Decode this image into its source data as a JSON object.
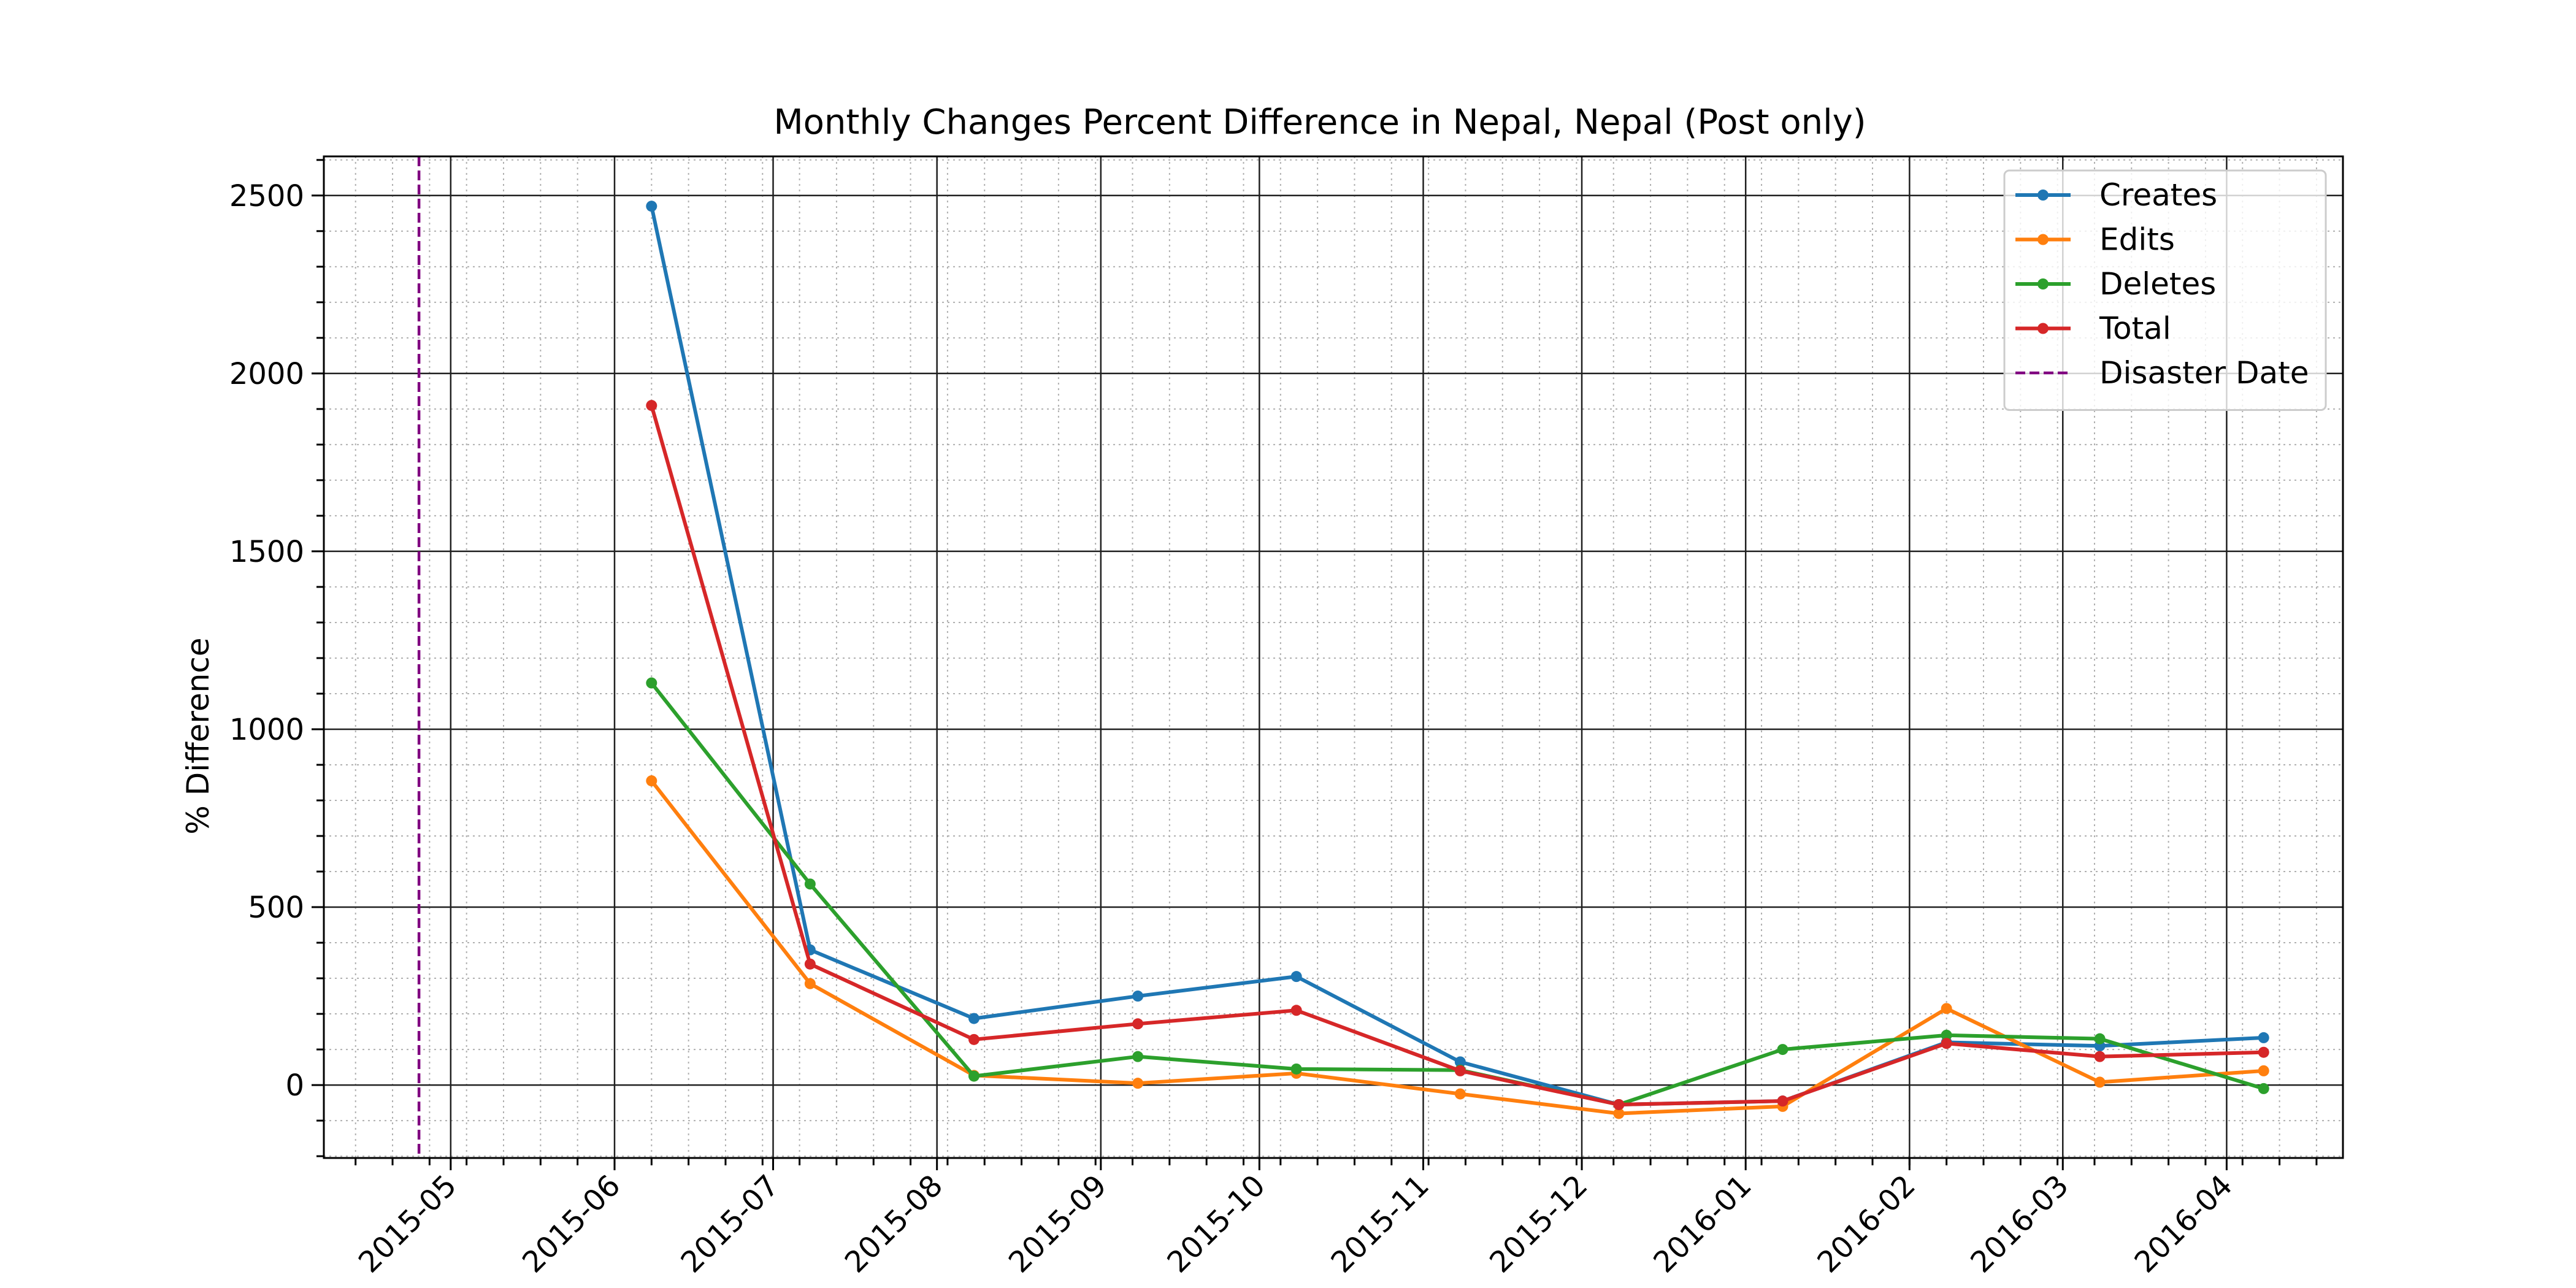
{
  "chart_data": {
    "type": "line",
    "title": "Monthly Changes Percent Difference in Nepal, Nepal (Post only)",
    "xlabel": "",
    "ylabel": "% Difference",
    "x_axis_type": "date",
    "xlim": [
      "2015-04-07",
      "2016-04-23"
    ],
    "ylim": [
      -205,
      2610
    ],
    "x_ticks": [
      "2015-05",
      "2015-06",
      "2015-07",
      "2015-08",
      "2015-09",
      "2015-10",
      "2015-11",
      "2015-12",
      "2016-01",
      "2016-02",
      "2016-03",
      "2016-04"
    ],
    "x_tick_dates": [
      "2015-05-01",
      "2015-06-01",
      "2015-07-01",
      "2015-08-01",
      "2015-09-01",
      "2015-10-01",
      "2015-11-01",
      "2015-12-01",
      "2016-01-01",
      "2016-02-01",
      "2016-03-01",
      "2016-04-01"
    ],
    "y_ticks": [
      0,
      500,
      1000,
      1500,
      2000,
      2500
    ],
    "grid": "major and minor",
    "legend_position": "top-right",
    "x": [
      "2015-06-08",
      "2015-07-08",
      "2015-08-08",
      "2015-09-08",
      "2015-10-08",
      "2015-11-08",
      "2015-12-08",
      "2016-01-08",
      "2016-02-08",
      "2016-03-08",
      "2016-04-08"
    ],
    "series": [
      {
        "name": "Creates",
        "color": "#1f77b4",
        "values": [
          2470,
          380,
          187,
          250,
          305,
          65,
          -55,
          -45,
          120,
          110,
          133
        ]
      },
      {
        "name": "Edits",
        "color": "#ff7f0e",
        "values": [
          855,
          285,
          27,
          5,
          33,
          -25,
          -80,
          -60,
          215,
          8,
          40
        ]
      },
      {
        "name": "Deletes",
        "color": "#2ca02c",
        "values": [
          1130,
          565,
          25,
          80,
          45,
          42,
          -55,
          100,
          140,
          130,
          -10
        ]
      },
      {
        "name": "Total",
        "color": "#d62728",
        "values": [
          1910,
          340,
          128,
          172,
          210,
          40,
          -55,
          -45,
          117,
          80,
          92
        ]
      }
    ],
    "reference_lines": [
      {
        "name": "Disaster Date",
        "date": "2015-04-25",
        "color": "#800080",
        "style": "dashed"
      }
    ]
  }
}
